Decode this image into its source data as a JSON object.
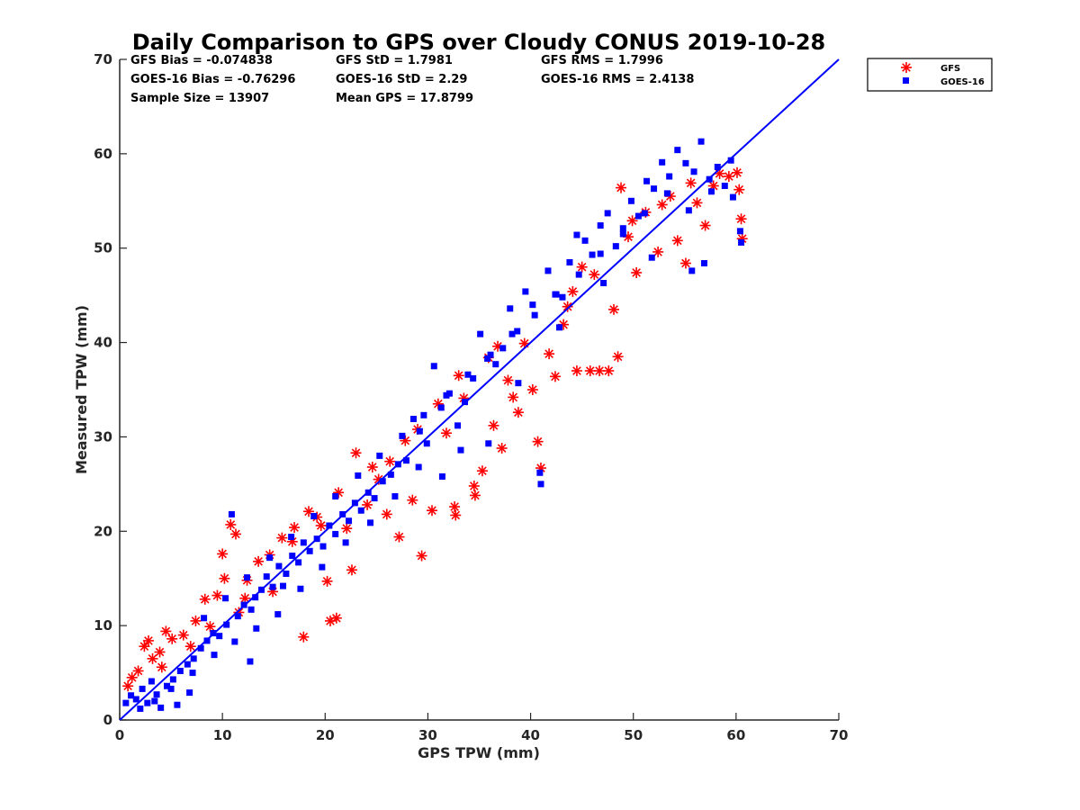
{
  "chart_data": {
    "type": "scatter",
    "title": "Daily Comparison to GPS over Cloudy CONUS 2019-10-28",
    "xlabel": "GPS TPW (mm)",
    "ylabel": "Measured TPW (mm)",
    "xlim": [
      0,
      70
    ],
    "ylim": [
      0,
      70
    ],
    "xticks": [
      "0",
      "10",
      "20",
      "30",
      "40",
      "50",
      "60",
      "70"
    ],
    "yticks": [
      "0",
      "10",
      "20",
      "30",
      "40",
      "50",
      "60",
      "70"
    ],
    "grid": false,
    "legend_position": "outside-top-right",
    "reference_line": {
      "name": "1:1 line",
      "x": [
        0,
        70
      ],
      "y": [
        0,
        70
      ],
      "color": "#0000ff"
    },
    "stats": {
      "gfs_bias": "GFS Bias = -0.074838",
      "gfs_std": "GFS StD = 1.7981",
      "gfs_rms": "GFS RMS = 1.7996",
      "goes_bias": "GOES-16 Bias = -0.76296",
      "goes_std": "GOES-16 StD = 2.29",
      "goes_rms": "GOES-16 RMS = 2.4138",
      "sample_size": "Sample Size = 13907",
      "mean_gps": "Mean GPS = 17.8799"
    },
    "series": [
      {
        "name": "GFS",
        "marker": "asterisk",
        "color": "#ff0000",
        "points": [
          [
            0.8,
            3.6
          ],
          [
            1.2,
            4.5
          ],
          [
            1.8,
            5.2
          ],
          [
            2.4,
            7.8
          ],
          [
            2.8,
            8.4
          ],
          [
            3.2,
            6.5
          ],
          [
            3.9,
            7.2
          ],
          [
            4.5,
            9.4
          ],
          [
            5.1,
            8.6
          ],
          [
            6.2,
            9.0
          ],
          [
            7.4,
            10.5
          ],
          [
            8.3,
            12.8
          ],
          [
            9.5,
            13.2
          ],
          [
            10.2,
            15.0
          ],
          [
            10.8,
            20.7
          ],
          [
            11.3,
            19.7
          ],
          [
            10.0,
            17.6
          ],
          [
            12.2,
            12.9
          ],
          [
            13.5,
            16.8
          ],
          [
            14.6,
            17.5
          ],
          [
            15.8,
            19.3
          ],
          [
            17.0,
            20.4
          ],
          [
            17.9,
            8.8
          ],
          [
            18.4,
            22.1
          ],
          [
            19.6,
            20.6
          ],
          [
            20.2,
            14.7
          ],
          [
            20.5,
            10.5
          ],
          [
            21.1,
            10.8
          ],
          [
            21.3,
            24.1
          ],
          [
            22.6,
            15.9
          ],
          [
            23.0,
            28.3
          ],
          [
            24.1,
            22.8
          ],
          [
            25.2,
            25.5
          ],
          [
            26.3,
            27.4
          ],
          [
            27.2,
            19.4
          ],
          [
            27.8,
            29.6
          ],
          [
            28.5,
            23.3
          ],
          [
            29.4,
            17.4
          ],
          [
            30.4,
            22.2
          ],
          [
            31.0,
            33.5
          ],
          [
            31.8,
            30.4
          ],
          [
            32.6,
            22.6
          ],
          [
            32.7,
            21.7
          ],
          [
            33.5,
            34.1
          ],
          [
            34.5,
            24.8
          ],
          [
            34.6,
            23.8
          ],
          [
            35.3,
            26.4
          ],
          [
            35.9,
            38.4
          ],
          [
            36.4,
            31.2
          ],
          [
            37.2,
            28.8
          ],
          [
            37.8,
            36.0
          ],
          [
            38.8,
            32.6
          ],
          [
            39.4,
            39.9
          ],
          [
            40.2,
            35.0
          ],
          [
            40.7,
            29.5
          ],
          [
            41.0,
            26.7
          ],
          [
            41.8,
            38.8
          ],
          [
            42.4,
            36.4
          ],
          [
            43.2,
            41.9
          ],
          [
            44.1,
            45.4
          ],
          [
            44.5,
            37.0
          ],
          [
            45.0,
            48.0
          ],
          [
            45.8,
            37.0
          ],
          [
            46.7,
            37.0
          ],
          [
            47.6,
            37.0
          ],
          [
            48.1,
            43.5
          ],
          [
            48.5,
            38.5
          ],
          [
            48.8,
            56.4
          ],
          [
            49.5,
            51.2
          ],
          [
            50.3,
            47.4
          ],
          [
            51.2,
            53.8
          ],
          [
            52.4,
            49.6
          ],
          [
            53.6,
            55.5
          ],
          [
            54.3,
            50.8
          ],
          [
            55.1,
            48.4
          ],
          [
            56.2,
            54.8
          ],
          [
            57.0,
            52.4
          ],
          [
            57.8,
            56.6
          ],
          [
            58.4,
            57.9
          ],
          [
            59.3,
            57.6
          ],
          [
            60.1,
            58.0
          ],
          [
            60.3,
            56.2
          ],
          [
            60.5,
            53.1
          ],
          [
            60.6,
            51.0
          ],
          [
            12.4,
            14.8
          ],
          [
            14.9,
            13.6
          ],
          [
            16.8,
            18.9
          ],
          [
            19.2,
            21.5
          ],
          [
            22.1,
            20.3
          ],
          [
            24.6,
            26.8
          ],
          [
            26.0,
            21.8
          ],
          [
            29.0,
            30.8
          ],
          [
            33.0,
            36.5
          ],
          [
            36.8,
            39.6
          ],
          [
            38.3,
            34.2
          ],
          [
            43.6,
            43.8
          ],
          [
            46.2,
            47.2
          ],
          [
            49.9,
            52.9
          ],
          [
            52.8,
            54.6
          ],
          [
            55.6,
            56.9
          ],
          [
            4.1,
            5.6
          ],
          [
            6.9,
            7.8
          ],
          [
            8.8,
            9.9
          ],
          [
            11.6,
            11.4
          ]
        ]
      },
      {
        "name": "GOES-16",
        "marker": "square",
        "color": "#0000ff",
        "points": [
          [
            0.6,
            1.8
          ],
          [
            1.1,
            2.6
          ],
          [
            1.6,
            2.2
          ],
          [
            2.2,
            3.3
          ],
          [
            2.7,
            1.8
          ],
          [
            3.1,
            4.1
          ],
          [
            3.6,
            2.7
          ],
          [
            4.0,
            1.3
          ],
          [
            4.6,
            3.6
          ],
          [
            5.2,
            4.3
          ],
          [
            5.9,
            5.2
          ],
          [
            6.6,
            5.9
          ],
          [
            7.2,
            6.5
          ],
          [
            7.9,
            7.6
          ],
          [
            8.5,
            8.4
          ],
          [
            9.1,
            9.2
          ],
          [
            9.7,
            8.9
          ],
          [
            10.4,
            10.1
          ],
          [
            10.9,
            21.8
          ],
          [
            11.5,
            11.0
          ],
          [
            12.1,
            12.2
          ],
          [
            12.7,
            6.2
          ],
          [
            13.2,
            13.0
          ],
          [
            13.8,
            13.8
          ],
          [
            14.3,
            15.2
          ],
          [
            14.9,
            14.1
          ],
          [
            15.5,
            16.3
          ],
          [
            16.2,
            15.5
          ],
          [
            16.8,
            17.4
          ],
          [
            17.4,
            16.7
          ],
          [
            17.9,
            18.8
          ],
          [
            18.5,
            17.9
          ],
          [
            19.2,
            19.2
          ],
          [
            19.8,
            18.4
          ],
          [
            20.4,
            20.6
          ],
          [
            21.0,
            19.7
          ],
          [
            21.7,
            21.8
          ],
          [
            22.3,
            21.1
          ],
          [
            22.9,
            23.0
          ],
          [
            23.5,
            22.2
          ],
          [
            24.2,
            24.1
          ],
          [
            24.8,
            23.5
          ],
          [
            25.6,
            25.3
          ],
          [
            26.4,
            26.0
          ],
          [
            27.1,
            27.1
          ],
          [
            27.9,
            27.5
          ],
          [
            28.6,
            31.9
          ],
          [
            29.2,
            30.6
          ],
          [
            29.9,
            29.3
          ],
          [
            30.6,
            37.5
          ],
          [
            31.3,
            33.1
          ],
          [
            32.1,
            34.6
          ],
          [
            32.9,
            31.2
          ],
          [
            33.6,
            33.7
          ],
          [
            34.4,
            36.2
          ],
          [
            35.1,
            40.9
          ],
          [
            35.8,
            38.3
          ],
          [
            36.6,
            37.7
          ],
          [
            37.3,
            39.4
          ],
          [
            38.0,
            43.6
          ],
          [
            38.7,
            41.2
          ],
          [
            39.5,
            45.4
          ],
          [
            40.2,
            44.0
          ],
          [
            40.9,
            26.2
          ],
          [
            41.0,
            25.0
          ],
          [
            41.7,
            47.6
          ],
          [
            42.4,
            45.1
          ],
          [
            43.1,
            44.8
          ],
          [
            43.8,
            48.5
          ],
          [
            44.5,
            51.4
          ],
          [
            45.3,
            50.8
          ],
          [
            46.0,
            49.3
          ],
          [
            46.8,
            52.4
          ],
          [
            47.5,
            53.7
          ],
          [
            48.3,
            50.2
          ],
          [
            49.0,
            52.1
          ],
          [
            49.8,
            55.0
          ],
          [
            50.5,
            53.4
          ],
          [
            51.3,
            57.1
          ],
          [
            52.0,
            56.3
          ],
          [
            52.8,
            59.1
          ],
          [
            53.5,
            57.6
          ],
          [
            54.3,
            60.4
          ],
          [
            55.1,
            59.0
          ],
          [
            55.9,
            58.1
          ],
          [
            56.6,
            61.3
          ],
          [
            57.4,
            57.3
          ],
          [
            58.2,
            58.6
          ],
          [
            58.9,
            56.6
          ],
          [
            59.7,
            55.4
          ],
          [
            60.4,
            51.8
          ],
          [
            60.5,
            50.6
          ],
          [
            56.9,
            48.4
          ],
          [
            55.7,
            47.6
          ],
          [
            51.8,
            49.0
          ],
          [
            47.1,
            46.3
          ],
          [
            42.8,
            41.6
          ],
          [
            38.8,
            35.7
          ],
          [
            35.9,
            29.3
          ],
          [
            33.2,
            28.6
          ],
          [
            31.4,
            25.8
          ],
          [
            29.1,
            26.8
          ],
          [
            26.8,
            23.7
          ],
          [
            24.4,
            20.9
          ],
          [
            22.0,
            18.8
          ],
          [
            19.7,
            16.2
          ],
          [
            17.6,
            13.9
          ],
          [
            15.4,
            11.2
          ],
          [
            13.3,
            9.7
          ],
          [
            11.2,
            8.3
          ],
          [
            9.2,
            6.9
          ],
          [
            7.1,
            5.0
          ],
          [
            5.0,
            3.3
          ],
          [
            3.4,
            2.0
          ],
          [
            2.0,
            1.2
          ],
          [
            8.2,
            10.8
          ],
          [
            10.3,
            12.9
          ],
          [
            12.4,
            15.1
          ],
          [
            14.6,
            17.2
          ],
          [
            16.7,
            19.4
          ],
          [
            18.9,
            21.6
          ],
          [
            21.0,
            23.7
          ],
          [
            23.2,
            25.9
          ],
          [
            25.3,
            28.0
          ],
          [
            27.5,
            30.1
          ],
          [
            29.6,
            32.3
          ],
          [
            31.8,
            34.4
          ],
          [
            33.9,
            36.6
          ],
          [
            36.1,
            38.7
          ],
          [
            38.2,
            40.9
          ],
          [
            40.4,
            42.9
          ],
          [
            42.5,
            45.1
          ],
          [
            44.7,
            47.2
          ],
          [
            46.8,
            49.4
          ],
          [
            49.0,
            51.5
          ],
          [
            51.1,
            53.7
          ],
          [
            53.3,
            55.8
          ],
          [
            55.4,
            54.0
          ],
          [
            57.6,
            56.0
          ],
          [
            59.5,
            59.3
          ],
          [
            5.6,
            1.6
          ],
          [
            6.8,
            2.9
          ],
          [
            12.8,
            11.7
          ],
          [
            15.9,
            14.2
          ]
        ]
      }
    ]
  }
}
